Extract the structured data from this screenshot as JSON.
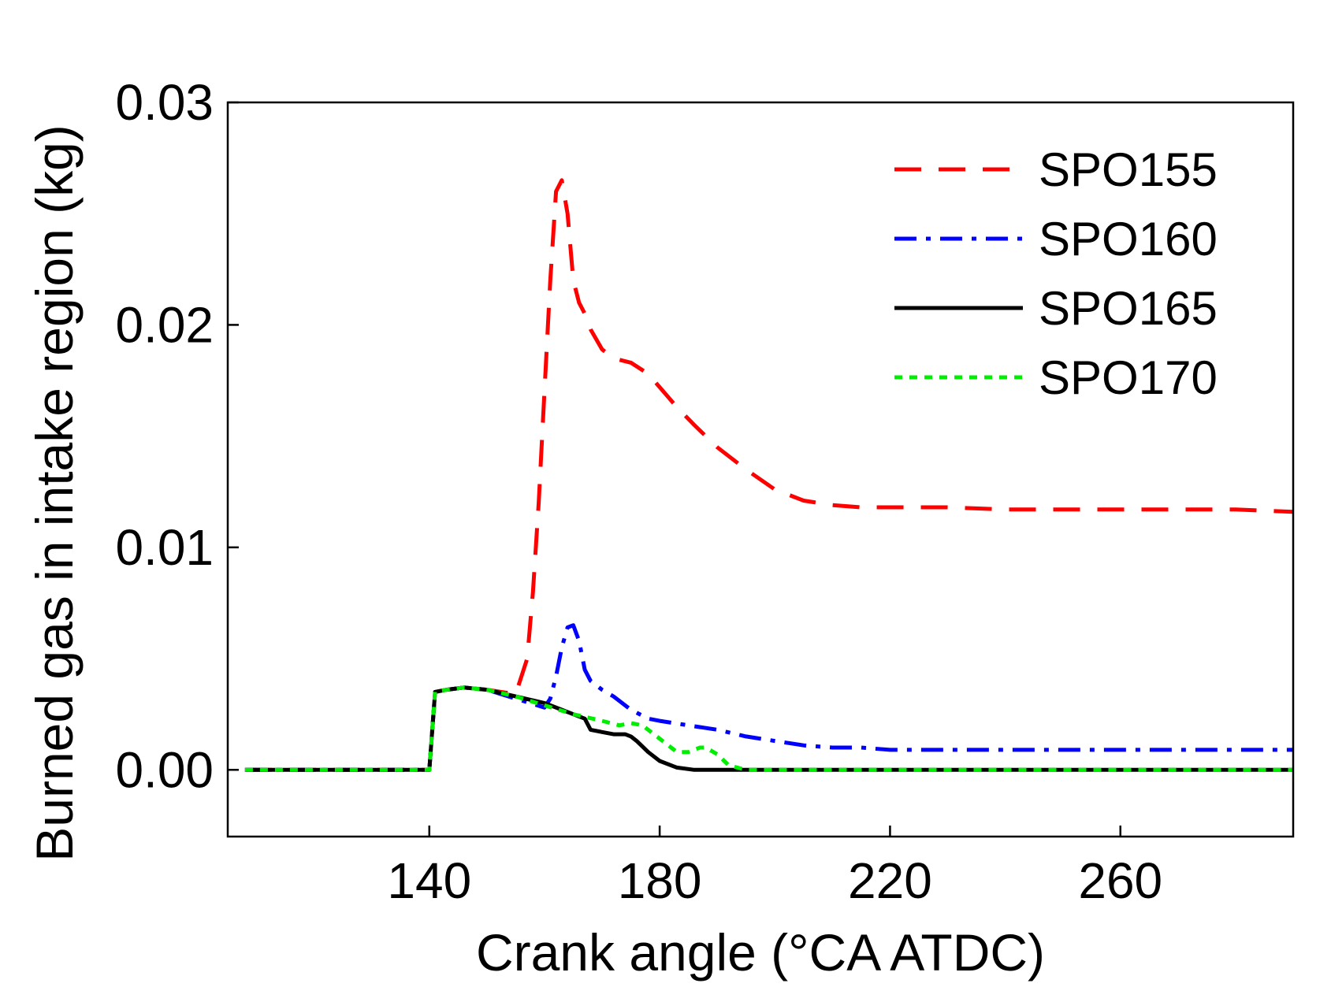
{
  "chart_data": {
    "type": "line",
    "title": "",
    "xlabel": "Crank angle (°CA ATDC)",
    "ylabel": "Burned gas in intake region (kg)",
    "xlim": [
      105,
      290
    ],
    "ylim": [
      -0.003,
      0.03
    ],
    "xticks": [
      140,
      180,
      220,
      260
    ],
    "xtick_labels": [
      "140",
      "180",
      "220",
      "260"
    ],
    "yticks": [
      0.0,
      0.01,
      0.02,
      0.03
    ],
    "ytick_labels": [
      "0.00",
      "0.01",
      "0.02",
      "0.03"
    ],
    "grid": false,
    "legend_position": "top-right",
    "series": [
      {
        "name": "SPO155",
        "color": "#ff0000",
        "dash": "dashed",
        "x": [
          108,
          140,
          141,
          143,
          146,
          150,
          155,
          157,
          158,
          159,
          160,
          161,
          162,
          163,
          164,
          165,
          166,
          167,
          168,
          170,
          172,
          175,
          178,
          180,
          183,
          186,
          190,
          195,
          200,
          205,
          210,
          215,
          220,
          230,
          240,
          250,
          260,
          270,
          280,
          290
        ],
        "y": [
          0,
          0,
          0.0035,
          0.0036,
          0.0037,
          0.0036,
          0.0034,
          0.005,
          0.008,
          0.012,
          0.017,
          0.022,
          0.026,
          0.0265,
          0.025,
          0.022,
          0.021,
          0.0205,
          0.0198,
          0.0189,
          0.0185,
          0.0183,
          0.0178,
          0.0172,
          0.0163,
          0.0155,
          0.0145,
          0.0135,
          0.0126,
          0.0121,
          0.0119,
          0.0118,
          0.0118,
          0.0118,
          0.0117,
          0.0117,
          0.0117,
          0.0117,
          0.0117,
          0.0116
        ]
      },
      {
        "name": "SPO160",
        "color": "#0000ff",
        "dash": "dashdot",
        "x": [
          108,
          140,
          141,
          143,
          146,
          150,
          155,
          160,
          161,
          162,
          163,
          164,
          165,
          166,
          167,
          168,
          170,
          172,
          175,
          178,
          180,
          185,
          190,
          195,
          200,
          205,
          210,
          215,
          220,
          230,
          240,
          250,
          260,
          270,
          280,
          290
        ],
        "y": [
          0,
          0,
          0.0035,
          0.0036,
          0.0037,
          0.0036,
          0.0032,
          0.0028,
          0.0032,
          0.0042,
          0.0055,
          0.0064,
          0.0065,
          0.0058,
          0.0045,
          0.004,
          0.0036,
          0.0033,
          0.0027,
          0.0023,
          0.0022,
          0.002,
          0.0018,
          0.0015,
          0.0013,
          0.0011,
          0.001,
          0.001,
          0.0009,
          0.0009,
          0.0009,
          0.0009,
          0.0009,
          0.0009,
          0.0009,
          0.0009
        ]
      },
      {
        "name": "SPO165",
        "color": "#000000",
        "dash": "solid",
        "x": [
          108,
          140,
          141,
          143,
          146,
          150,
          155,
          160,
          165,
          167,
          168,
          170,
          172,
          174,
          175,
          176,
          178,
          180,
          183,
          186,
          190,
          200,
          220,
          250,
          290
        ],
        "y": [
          0,
          0,
          0.0035,
          0.0036,
          0.0037,
          0.0036,
          0.0033,
          0.003,
          0.0025,
          0.0023,
          0.0018,
          0.0017,
          0.0016,
          0.0016,
          0.0015,
          0.0013,
          0.0008,
          0.0004,
          0.0001,
          0,
          0,
          0,
          0,
          0,
          0
        ]
      },
      {
        "name": "SPO170",
        "color": "#00ee00",
        "dash": "dotted",
        "x": [
          108,
          140,
          141,
          143,
          146,
          150,
          155,
          160,
          165,
          170,
          173,
          175,
          177,
          179,
          181,
          183,
          185,
          187,
          188,
          190,
          192,
          195,
          200,
          220,
          250,
          290
        ],
        "y": [
          0,
          0,
          0.0035,
          0.0036,
          0.0037,
          0.0036,
          0.0033,
          0.0029,
          0.0025,
          0.0022,
          0.002,
          0.0021,
          0.002,
          0.0016,
          0.0012,
          0.0008,
          0.0008,
          0.001,
          0.001,
          0.0007,
          0.0002,
          0,
          0,
          0,
          0,
          0
        ]
      }
    ]
  }
}
